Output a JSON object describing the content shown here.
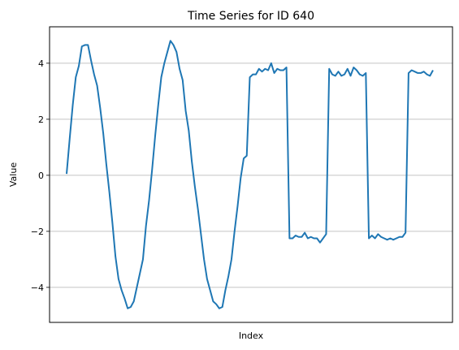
{
  "chart_data": {
    "type": "line",
    "title": "Time Series for ID 640",
    "xlabel": "Index",
    "ylabel": "Value",
    "ylim": [
      -5.25,
      5.3
    ],
    "yticks": [
      -4,
      -2,
      0,
      2,
      4
    ],
    "yticklabels": [
      "−4",
      "−2",
      "0",
      "2",
      "4"
    ],
    "grid": "horizontal",
    "xticks_visible": false,
    "line_color": "#1f77b4",
    "series": [
      {
        "values": [
          0.05,
          1.3,
          2.5,
          3.5,
          3.9,
          4.6,
          4.65,
          4.65,
          4.1,
          3.6,
          3.2,
          2.4,
          1.5,
          0.4,
          -0.6,
          -1.7,
          -2.9,
          -3.7,
          -4.1,
          -4.4,
          -4.75,
          -4.7,
          -4.5,
          -4.0,
          -3.5,
          -3.0,
          -1.8,
          -0.9,
          0.2,
          1.4,
          2.5,
          3.5,
          4.0,
          4.4,
          4.8,
          4.65,
          4.4,
          3.8,
          3.4,
          2.3,
          1.6,
          0.5,
          -0.4,
          -1.2,
          -2.1,
          -3.0,
          -3.7,
          -4.1,
          -4.5,
          -4.6,
          -4.75,
          -4.7,
          -4.1,
          -3.6,
          -3.0,
          -2.0,
          -1.1,
          -0.1,
          0.6,
          0.7,
          3.5,
          3.6,
          3.6,
          3.8,
          3.7,
          3.8,
          3.75,
          4.0,
          3.65,
          3.8,
          3.75,
          3.75,
          3.85,
          -2.25,
          -2.25,
          -2.15,
          -2.2,
          -2.2,
          -2.05,
          -2.25,
          -2.2,
          -2.25,
          -2.25,
          -2.4,
          -2.25,
          -2.1,
          3.8,
          3.6,
          3.55,
          3.7,
          3.55,
          3.6,
          3.8,
          3.55,
          3.85,
          3.75,
          3.6,
          3.55,
          3.65,
          -2.25,
          -2.15,
          -2.25,
          -2.1,
          -2.2,
          -2.25,
          -2.3,
          -2.25,
          -2.3,
          -2.25,
          -2.2,
          -2.2,
          -2.05,
          3.65,
          3.75,
          3.7,
          3.65,
          3.65,
          3.7,
          3.6,
          3.55,
          3.75
        ]
      }
    ]
  }
}
